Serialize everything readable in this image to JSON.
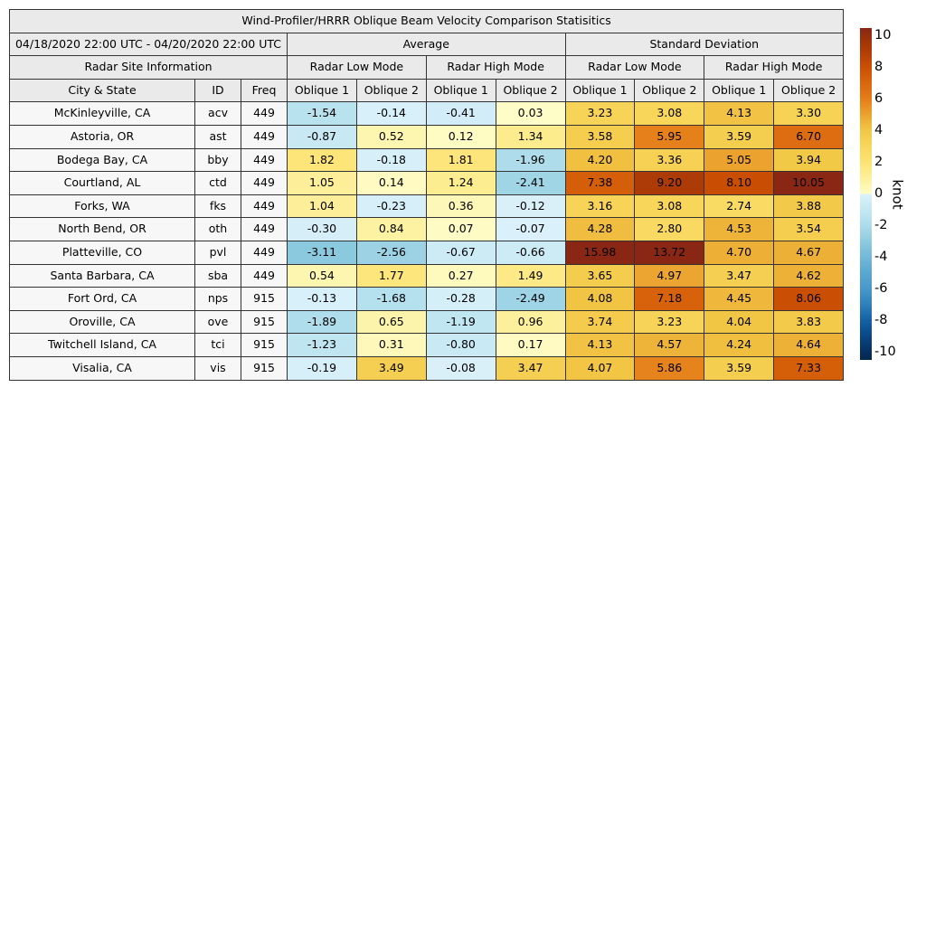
{
  "title": "Wind-Profiler/HRRR Oblique Beam Velocity Comparison Statisitics",
  "period": "04/18/2020 22:00 UTC - 04/20/2020 22:00 UTC",
  "sections": {
    "average": "Average",
    "std_dev": "Standard Deviation",
    "site_info": "Radar Site Information",
    "low_mode": "Radar Low Mode",
    "high_mode": "Radar High Mode"
  },
  "columns": {
    "city": "City & State",
    "id": "ID",
    "freq": "Freq",
    "oblique1": "Oblique 1",
    "oblique2": "Oblique 2"
  },
  "colors": {
    "header_bg": "#eaeaea",
    "label_bg": "#f7f7f7",
    "border": "#333333",
    "text": "#000000",
    "page_bg": "#ffffff"
  },
  "colorbar": {
    "unit": "knot",
    "vmin": -10.5,
    "vmax": 10.5,
    "cell_clip": 10,
    "ticks": [
      {
        "value": 10,
        "label": "10"
      },
      {
        "value": 8,
        "label": "8"
      },
      {
        "value": 6,
        "label": "6"
      },
      {
        "value": 4,
        "label": "4"
      },
      {
        "value": 2,
        "label": "2"
      },
      {
        "value": 0,
        "label": "0"
      },
      {
        "value": -2,
        "label": "-2"
      },
      {
        "value": -4,
        "label": "-4"
      },
      {
        "value": -6,
        "label": "-6"
      },
      {
        "value": -8,
        "label": "-8"
      },
      {
        "value": -10,
        "label": "-10"
      }
    ],
    "stops": [
      {
        "v": -10.5,
        "c": "#052749"
      },
      {
        "v": -10,
        "c": "#072f5e"
      },
      {
        "v": -9,
        "c": "#0a4785"
      },
      {
        "v": -8,
        "c": "#1661a5"
      },
      {
        "v": -7,
        "c": "#2e80ba"
      },
      {
        "v": -6,
        "c": "#4898ca"
      },
      {
        "v": -5,
        "c": "#59a8d0"
      },
      {
        "v": -4,
        "c": "#72b8d8"
      },
      {
        "v": -3,
        "c": "#8ecbdf"
      },
      {
        "v": -2,
        "c": "#addceb"
      },
      {
        "v": -1,
        "c": "#c5e8f2"
      },
      {
        "v": -0.01,
        "c": "#dbf1fa"
      },
      {
        "v": 0.01,
        "c": "#fefcc8"
      },
      {
        "v": 1,
        "c": "#fdf09b"
      },
      {
        "v": 2,
        "c": "#fde373"
      },
      {
        "v": 3,
        "c": "#f8d75c"
      },
      {
        "v": 4,
        "c": "#f2c746"
      },
      {
        "v": 5,
        "c": "#eba42f"
      },
      {
        "v": 6,
        "c": "#e67e19"
      },
      {
        "v": 7,
        "c": "#d9660c"
      },
      {
        "v": 8,
        "c": "#cc5004"
      },
      {
        "v": 9,
        "c": "#b13d07"
      },
      {
        "v": 9.5,
        "c": "#a53708"
      },
      {
        "v": 10,
        "c": "#952f0d"
      },
      {
        "v": 10.5,
        "c": "#892714"
      }
    ]
  },
  "chart_data": {
    "type": "table",
    "title": "Wind-Profiler/HRRR Oblique Beam Velocity Comparison Statisitics",
    "period": "04/18/2020 22:00 UTC - 04/20/2020 22:00 UTC",
    "unit": "knot",
    "color_scale_range": [
      -10.5,
      10.5
    ],
    "column_groups": [
      "Average / Radar Low Mode",
      "Average / Radar High Mode",
      "Standard Deviation / Radar Low Mode",
      "Standard Deviation / Radar High Mode"
    ],
    "value_columns": [
      "Avg Low Oblique 1",
      "Avg Low Oblique 2",
      "Avg High Oblique 1",
      "Avg High Oblique 2",
      "Std Low Oblique 1",
      "Std Low Oblique 2",
      "Std High Oblique 1",
      "Std High Oblique 2"
    ],
    "rows": [
      {
        "city": "McKinleyville, CA",
        "id": "acv",
        "freq": "449",
        "values": [
          "-1.54",
          "-0.14",
          "-0.41",
          "0.03",
          "3.23",
          "3.08",
          "4.13",
          "3.30"
        ]
      },
      {
        "city": "Astoria, OR",
        "id": "ast",
        "freq": "449",
        "values": [
          "-0.87",
          "0.52",
          "0.12",
          "1.34",
          "3.58",
          "5.95",
          "3.59",
          "6.70"
        ]
      },
      {
        "city": "Bodega Bay, CA",
        "id": "bby",
        "freq": "449",
        "values": [
          "1.82",
          "-0.18",
          "1.81",
          "-1.96",
          "4.20",
          "3.36",
          "5.05",
          "3.94"
        ]
      },
      {
        "city": "Courtland, AL",
        "id": "ctd",
        "freq": "449",
        "values": [
          "1.05",
          "0.14",
          "1.24",
          "-2.41",
          "7.38",
          "9.20",
          "8.10",
          "10.05"
        ]
      },
      {
        "city": "Forks, WA",
        "id": "fks",
        "freq": "449",
        "values": [
          "1.04",
          "-0.23",
          "0.36",
          "-0.12",
          "3.16",
          "3.08",
          "2.74",
          "3.88"
        ]
      },
      {
        "city": "North Bend, OR",
        "id": "oth",
        "freq": "449",
        "values": [
          "-0.30",
          "0.84",
          "0.07",
          "-0.07",
          "4.28",
          "2.80",
          "4.53",
          "3.54"
        ]
      },
      {
        "city": "Platteville, CO",
        "id": "pvl",
        "freq": "449",
        "values": [
          "-3.11",
          "-2.56",
          "-0.67",
          "-0.66",
          "15.98",
          "13.72",
          "4.70",
          "4.67"
        ]
      },
      {
        "city": "Santa Barbara, CA",
        "id": "sba",
        "freq": "449",
        "values": [
          "0.54",
          "1.77",
          "0.27",
          "1.49",
          "3.65",
          "4.97",
          "3.47",
          "4.62"
        ]
      },
      {
        "city": "Fort Ord, CA",
        "id": "nps",
        "freq": "915",
        "values": [
          "-0.13",
          "-1.68",
          "-0.28",
          "-2.49",
          "4.08",
          "7.18",
          "4.45",
          "8.06"
        ]
      },
      {
        "city": "Oroville, CA",
        "id": "ove",
        "freq": "915",
        "values": [
          "-1.89",
          "0.65",
          "-1.19",
          "0.96",
          "3.74",
          "3.23",
          "4.04",
          "3.83"
        ]
      },
      {
        "city": "Twitchell Island, CA",
        "id": "tci",
        "freq": "915",
        "values": [
          "-1.23",
          "0.31",
          "-0.80",
          "0.17",
          "4.13",
          "4.57",
          "4.24",
          "4.64"
        ]
      },
      {
        "city": "Visalia, CA",
        "id": "vis",
        "freq": "915",
        "values": [
          "-0.19",
          "3.49",
          "-0.08",
          "3.47",
          "4.07",
          "5.86",
          "3.59",
          "7.33"
        ]
      }
    ]
  }
}
